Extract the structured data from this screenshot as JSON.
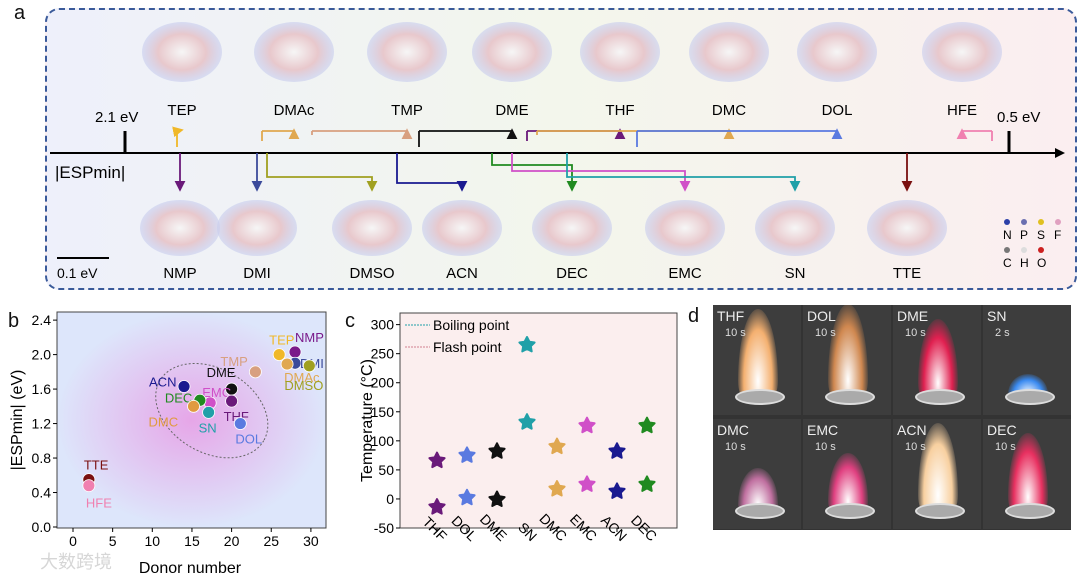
{
  "panels": {
    "a": "a",
    "b": "b",
    "c": "c",
    "d": "d"
  },
  "panel_a": {
    "axis_label": "|ESPmin|",
    "left_value": "2.1 eV",
    "right_value": "0.5 eV",
    "scale_bar": "0.1 eV",
    "top_molecules": [
      "TEP",
      "DMAc",
      "TMP",
      "DME",
      "THF",
      "DMC",
      "DOL",
      "HFE"
    ],
    "bottom_molecules": [
      "NMP",
      "DMI",
      "DMSO",
      "ACN",
      "DEC",
      "EMC",
      "SN",
      "TTE"
    ],
    "legend_atoms": [
      "N",
      "P",
      "S",
      "F",
      "C",
      "H",
      "O"
    ],
    "legend_colors": [
      "#2b3fa8",
      "#6a6fb0",
      "#e0c020",
      "#e0a0c0",
      "#777777",
      "#dddddd",
      "#cc2020"
    ]
  },
  "chart_data": [
    {
      "type": "scatter",
      "panel": "b",
      "title": "",
      "xlabel": "Donor number",
      "ylabel": "|ESPmin| (eV)",
      "xlim": [
        -2,
        32
      ],
      "ylim": [
        0,
        2.45
      ],
      "xticks": [
        "0",
        "5",
        "10",
        "15",
        "20",
        "25",
        "30"
      ],
      "yticks": [
        "0.0",
        "0.4",
        "0.8",
        "1.2",
        "1.6",
        "2.0",
        "2.4"
      ],
      "points": [
        {
          "name": "TEP",
          "x": 26,
          "y": 2.0,
          "color": "#f0b828"
        },
        {
          "name": "NMP",
          "x": 28,
          "y": 2.03,
          "color": "#7a1a8a"
        },
        {
          "name": "DMI",
          "x": 28,
          "y": 1.9,
          "color": "#3b4a9a"
        },
        {
          "name": "DMAc",
          "x": 27,
          "y": 1.89,
          "color": "#e0a850"
        },
        {
          "name": "DMSO",
          "x": 29.8,
          "y": 1.87,
          "color": "#a0a020"
        },
        {
          "name": "TMP",
          "x": 23,
          "y": 1.8,
          "color": "#d8a080"
        },
        {
          "name": "ACN",
          "x": 14,
          "y": 1.63,
          "color": "#1a1a90"
        },
        {
          "name": "DME",
          "x": 20,
          "y": 1.6,
          "color": "#111111"
        },
        {
          "name": "EMC",
          "x": 17.3,
          "y": 1.44,
          "color": "#d050c8"
        },
        {
          "name": "DEC",
          "x": 16,
          "y": 1.47,
          "color": "#208a20"
        },
        {
          "name": "DMC",
          "x": 15.2,
          "y": 1.4,
          "color": "#e09a40"
        },
        {
          "name": "THF",
          "x": 20,
          "y": 1.46,
          "color": "#6a1a7a"
        },
        {
          "name": "SN",
          "x": 17.1,
          "y": 1.33,
          "color": "#20a0a8"
        },
        {
          "name": "DOL",
          "x": 21.1,
          "y": 1.2,
          "color": "#5a7ae0"
        },
        {
          "name": "TTE",
          "x": 2,
          "y": 0.55,
          "color": "#7a1010"
        },
        {
          "name": "HFE",
          "x": 2,
          "y": 0.48,
          "color": "#f080b0"
        }
      ]
    },
    {
      "type": "scatter",
      "panel": "c",
      "title": "",
      "xlabel": "",
      "ylabel": "Temperature (°C)",
      "ylim": [
        -50,
        320
      ],
      "yticks": [
        "-50",
        "0",
        "50",
        "100",
        "150",
        "200",
        "250",
        "300"
      ],
      "categories": [
        "THF",
        "DOL",
        "DME",
        "SN",
        "DMC",
        "EMC",
        "ACN",
        "DEC"
      ],
      "colors": [
        "#6a1a7a",
        "#5a7ae0",
        "#111111",
        "#20a0a8",
        "#e0a850",
        "#d050c8",
        "#1a1a90",
        "#208a20"
      ],
      "legend": [
        "Boiling point",
        "Flash point"
      ],
      "legend_placement": "top-left",
      "series": [
        {
          "name": "Boiling point",
          "values": [
            66,
            75,
            82,
            265,
            90,
            126,
            82,
            126
          ]
        },
        {
          "name": "Flash point",
          "values": [
            -14,
            2,
            -1,
            132,
            17,
            25,
            13,
            25
          ]
        }
      ]
    }
  ],
  "panel_d": {
    "photos": [
      {
        "label": "THF",
        "time": "10 s"
      },
      {
        "label": "DOL",
        "time": "10 s"
      },
      {
        "label": "DME",
        "time": "10 s"
      },
      {
        "label": "SN",
        "time": "2 s"
      },
      {
        "label": "DMC",
        "time": "10 s"
      },
      {
        "label": "EMC",
        "time": "10 s"
      },
      {
        "label": "ACN",
        "time": "10 s"
      },
      {
        "label": "DEC",
        "time": "10 s"
      }
    ]
  },
  "watermark": "大数跨境"
}
